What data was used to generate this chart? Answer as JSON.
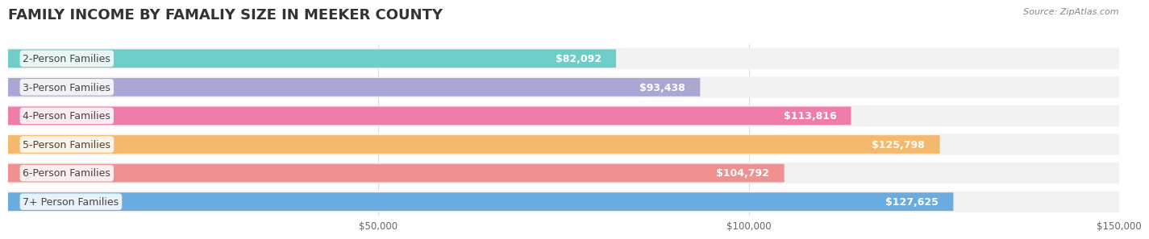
{
  "title": "FAMILY INCOME BY FAMALIY SIZE IN MEEKER COUNTY",
  "source": "Source: ZipAtlas.com",
  "categories": [
    "2-Person Families",
    "3-Person Families",
    "4-Person Families",
    "5-Person Families",
    "6-Person Families",
    "7+ Person Families"
  ],
  "values": [
    82092,
    93438,
    113816,
    125798,
    104792,
    127625
  ],
  "bar_colors": [
    "#6dcdc8",
    "#a9a8d4",
    "#f07caa",
    "#f5b96e",
    "#f09090",
    "#6aace0"
  ],
  "bar_bg_color": "#f0f0f0",
  "value_labels": [
    "$82,092",
    "$93,438",
    "$113,816",
    "$125,798",
    "$104,792",
    "$127,625"
  ],
  "xlim": [
    0,
    150000
  ],
  "xticks": [
    0,
    50000,
    100000,
    150000
  ],
  "xticklabels": [
    "",
    "$50,000",
    "$100,000",
    "$150,000"
  ],
  "title_fontsize": 13,
  "label_fontsize": 9,
  "value_fontsize": 9,
  "bg_color": "#ffffff",
  "plot_bg_color": "#ffffff",
  "grid_color": "#dddddd",
  "row_bg_colors": [
    "#f7f7f7",
    "#f0f0f0"
  ]
}
